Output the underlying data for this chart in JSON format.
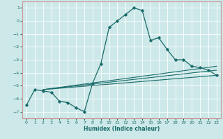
{
  "xlabel": "Humidex (Indice chaleur)",
  "bg_color": "#cde8e8",
  "grid_color": "#ffffff",
  "line_color": "#1a6b6b",
  "spine_color": "#cc9999",
  "xlim": [
    -0.5,
    23.5
  ],
  "ylim": [
    -7.5,
    1.5
  ],
  "yticks": [
    1,
    0,
    -1,
    -2,
    -3,
    -4,
    -5,
    -6,
    -7
  ],
  "xticks": [
    0,
    1,
    2,
    3,
    4,
    5,
    6,
    7,
    8,
    9,
    10,
    11,
    12,
    13,
    14,
    15,
    16,
    17,
    18,
    19,
    20,
    21,
    22,
    23
  ],
  "main_x": [
    0,
    1,
    2,
    3,
    4,
    5,
    6,
    7,
    8,
    9,
    10,
    11,
    12,
    13,
    14,
    15,
    16,
    17,
    18,
    19,
    20,
    21,
    22,
    23
  ],
  "main_y": [
    -6.5,
    -5.3,
    -5.4,
    -5.5,
    -6.2,
    -6.3,
    -6.7,
    -7.0,
    -4.8,
    -3.3,
    -0.5,
    0.0,
    0.5,
    1.0,
    0.8,
    -1.5,
    -1.3,
    -2.2,
    -3.0,
    -3.0,
    -3.5,
    -3.6,
    -3.8,
    -4.2
  ],
  "trend1_x": [
    2,
    23
  ],
  "trend1_y": [
    -5.3,
    -4.2
  ],
  "trend2_x": [
    2,
    23
  ],
  "trend2_y": [
    -5.3,
    -3.8
  ],
  "trend3_x": [
    2,
    23
  ],
  "trend3_y": [
    -5.3,
    -3.5
  ],
  "marker_indices": [
    0,
    1,
    2,
    3,
    4,
    5,
    6,
    7,
    8,
    9,
    10,
    11,
    12,
    13,
    14,
    15,
    16,
    17,
    18,
    19,
    20,
    21,
    22,
    23
  ]
}
